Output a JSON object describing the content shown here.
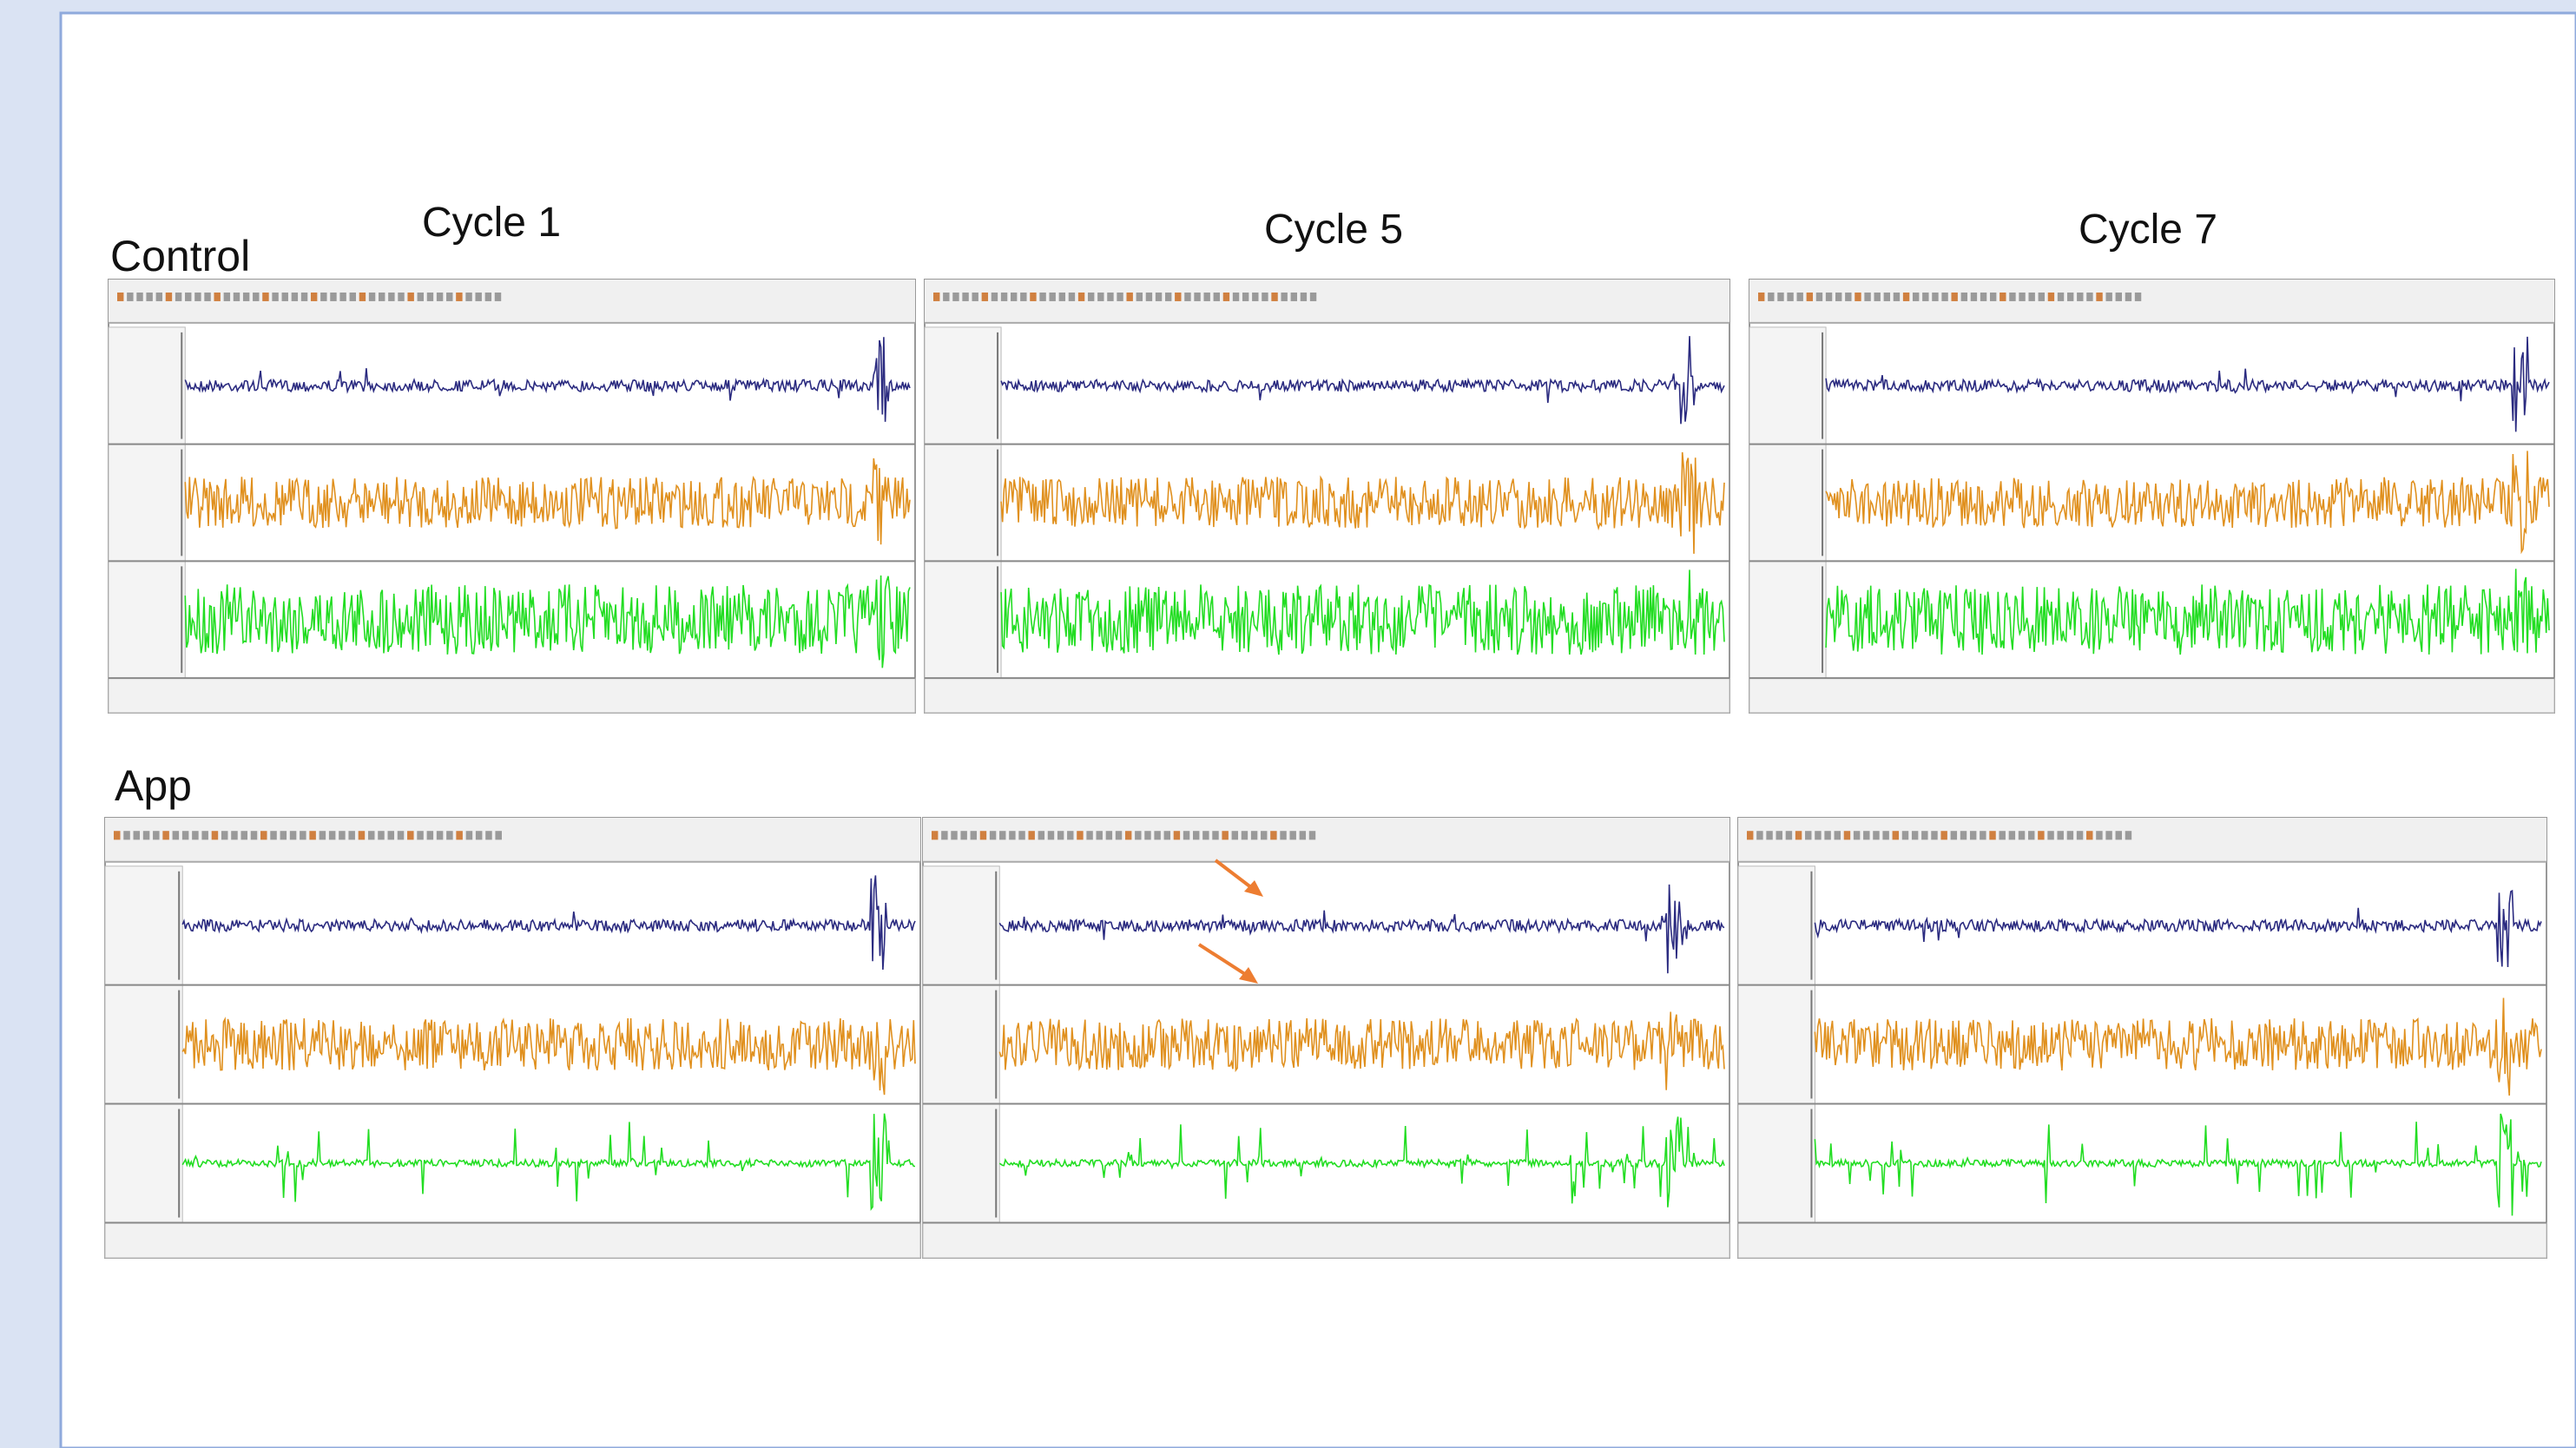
{
  "row_labels": [
    "Control",
    "App"
  ],
  "column_titles": [
    "Cycle 1",
    "Cycle 5",
    "Cycle 7"
  ]
}
